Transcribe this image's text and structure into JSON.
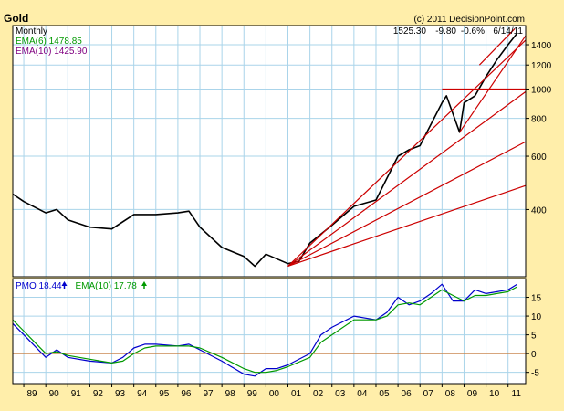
{
  "chart_data": {
    "type": "line",
    "title": "Gold",
    "copyright": "(c) 2011 DecisionPoint.com",
    "quote": {
      "close": "1525.30",
      "change": "-9.80",
      "pct": "-0.6%",
      "date": "6/14/11"
    },
    "colors": {
      "frame_bg": "#ffeeaa",
      "plot_bg": "#ffffff",
      "grid": "#aad4ea",
      "price": "#000000",
      "trendline": "#cc0000",
      "pmo": "#0000cc",
      "pmo_signal": "#009900",
      "zero_line": "#cc7733",
      "legend_green": "#009900",
      "legend_purple": "#800080"
    },
    "price_panel": {
      "period_label": "Monthly",
      "legend": [
        {
          "text": "EMA(6) 1478.85",
          "color_key": "legend_green"
        },
        {
          "text": "EMA(10) 1425.90",
          "color_key": "legend_purple"
        }
      ],
      "ylim": [
        240,
        1620
      ],
      "scale": "log",
      "y_ticks": [
        400,
        600,
        800,
        1000,
        1200,
        1400
      ],
      "series": [
        {
          "name": "Price",
          "x": [
            1988.5,
            1989,
            1990,
            1990.5,
            1991,
            1992,
            1993,
            1994,
            1995,
            1996,
            1996.5,
            1997,
            1998,
            1999,
            1999.5,
            2000,
            2001,
            2001.5,
            2002,
            2003,
            2004,
            2005,
            2006,
            2006.5,
            2007,
            2008,
            2008.2,
            2008.8,
            2009,
            2009.5,
            2010,
            2010.5,
            2011,
            2011.4
          ],
          "y": [
            450,
            425,
            390,
            400,
            370,
            350,
            345,
            385,
            385,
            390,
            395,
            350,
            300,
            280,
            260,
            285,
            265,
            270,
            310,
            355,
            410,
            430,
            600,
            630,
            650,
            900,
            950,
            720,
            900,
            950,
            1100,
            1250,
            1400,
            1525
          ]
        }
      ],
      "trendlines": [
        {
          "x": [
            2001,
            2011.8
          ],
          "y": [
            260,
            1450
          ]
        },
        {
          "x": [
            2001,
            2011.8
          ],
          "y": [
            260,
            980
          ]
        },
        {
          "x": [
            2001,
            2011.8
          ],
          "y": [
            260,
            670
          ]
        },
        {
          "x": [
            2001,
            2011.8
          ],
          "y": [
            260,
            480
          ]
        },
        {
          "x": [
            2008,
            2011.8
          ],
          "y": [
            1000,
            1000
          ]
        },
        {
          "x": [
            2008.8,
            2011.8
          ],
          "y": [
            720,
            1500
          ]
        },
        {
          "x": [
            2009.7,
            2011.3
          ],
          "y": [
            1200,
            1580
          ]
        }
      ]
    },
    "pmo_panel": {
      "legend": [
        {
          "text": "PMO 18.44",
          "arrow": "up",
          "color_key": "pmo"
        },
        {
          "text": "EMA(10) 17.78",
          "arrow": "up",
          "color_key": "pmo_signal"
        }
      ],
      "ylim": [
        -8,
        20
      ],
      "y_ticks": [
        -5,
        0,
        5,
        10,
        15
      ],
      "series": [
        {
          "name": "PMO",
          "x": [
            1988.5,
            1989,
            1989.5,
            1990,
            1990.5,
            1991,
            1992,
            1993,
            1993.5,
            1994,
            1994.5,
            1995,
            1996,
            1996.5,
            1997,
            1998,
            1999,
            1999.5,
            2000,
            2000.5,
            2001,
            2002,
            2002.5,
            2003,
            2004,
            2005,
            2005.5,
            2006,
            2006.5,
            2007,
            2007.5,
            2008,
            2008.5,
            2009,
            2009.5,
            2010,
            2010.5,
            2011,
            2011.4
          ],
          "y": [
            8,
            5,
            2,
            -1,
            1,
            -1,
            -2,
            -2.5,
            -1,
            1.5,
            2.5,
            2.5,
            2,
            2.5,
            1,
            -2,
            -5.5,
            -6,
            -4,
            -4,
            -3,
            0,
            5,
            7,
            10,
            9,
            11,
            15,
            13,
            14,
            16,
            18.5,
            14,
            14,
            17,
            16,
            16.5,
            17,
            18.44
          ]
        },
        {
          "name": "EMA(10)",
          "x": [
            1988.5,
            1989,
            1989.5,
            1990,
            1990.5,
            1991,
            1992,
            1993,
            1993.5,
            1994,
            1994.5,
            1995,
            1996,
            1996.5,
            1997,
            1998,
            1999,
            1999.5,
            2000,
            2000.5,
            2001,
            2002,
            2002.5,
            2003,
            2004,
            2005,
            2005.5,
            2006,
            2006.5,
            2007,
            2007.5,
            2008,
            2008.5,
            2009,
            2009.5,
            2010,
            2010.5,
            2011,
            2011.4
          ],
          "y": [
            9,
            6,
            3,
            0,
            0.5,
            -0.5,
            -1.5,
            -2.5,
            -2,
            0,
            1.5,
            2,
            2,
            2,
            1.5,
            -1,
            -4,
            -5,
            -5,
            -4.5,
            -3.5,
            -1,
            3,
            5,
            9,
            9,
            10,
            13,
            13.5,
            13,
            15,
            17,
            15.5,
            14,
            15.5,
            15.5,
            16,
            16.5,
            17.78
          ]
        }
      ]
    },
    "x_axis": {
      "xlim": [
        1988.5,
        2011.8
      ],
      "tick_labels": [
        "89",
        "90",
        "91",
        "92",
        "93",
        "94",
        "95",
        "96",
        "97",
        "98",
        "99",
        "00",
        "01",
        "02",
        "03",
        "04",
        "05",
        "06",
        "07",
        "08",
        "09",
        "10",
        "11"
      ],
      "tick_values": [
        1989,
        1990,
        1991,
        1992,
        1993,
        1994,
        1995,
        1996,
        1997,
        1998,
        1999,
        2000,
        2001,
        2002,
        2003,
        2004,
        2005,
        2006,
        2007,
        2008,
        2009,
        2010,
        2011
      ]
    }
  }
}
